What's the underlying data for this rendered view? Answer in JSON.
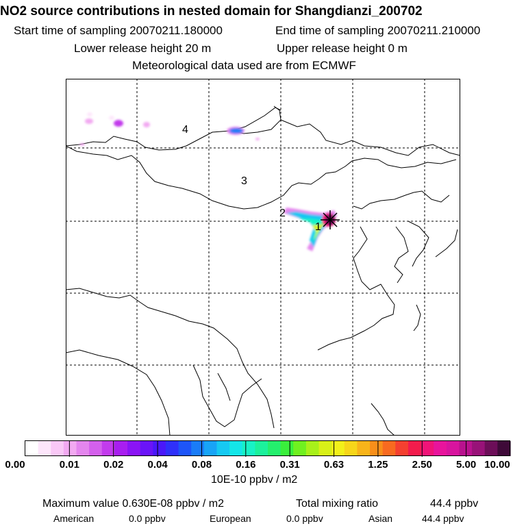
{
  "header": {
    "title": "NO2 source contributions in nested domain for Shangdianzi_200702",
    "start_label": "Start time of sampling 20070211.180000",
    "end_label": "End time of sampling 20070211.210000",
    "lower_label": "Lower release height   20 m",
    "upper_label": "Upper release height    0 m",
    "met_label": "Meteorological data used are from ECMWF"
  },
  "map": {
    "region_labels": [
      "1",
      "2",
      "3",
      "4"
    ]
  },
  "colorbar": {
    "ticks": [
      "0.00",
      "0.01",
      "0.02",
      "0.04",
      "0.08",
      "0.16",
      "0.31",
      "0.63",
      "1.25",
      "2.50",
      "5.00",
      "10.00"
    ],
    "colors": [
      "#ffffff",
      "#fde6fb",
      "#f9c8f6",
      "#f2a9f1",
      "#e486ee",
      "#d460ec",
      "#c23bec",
      "#a81ef0",
      "#8a14f5",
      "#6a14f8",
      "#4a18fa",
      "#2f30fa",
      "#1e55f8",
      "#1a7cf7",
      "#18a4f6",
      "#16c9f2",
      "#14e6e8",
      "#18f2c6",
      "#1cf19c",
      "#24ef6d",
      "#3aef3c",
      "#70f020",
      "#a8f01a",
      "#d8f018",
      "#f2f01a",
      "#f7d61a",
      "#f8b41a",
      "#f88f1a",
      "#f76a20",
      "#f44030",
      "#f21c4c",
      "#f01478",
      "#e8149c",
      "#d8149e",
      "#b8128e",
      "#981278",
      "#6c0e58",
      "#3e0a38"
    ],
    "unit_label": "10E-10 ppbv / m2"
  },
  "stats": {
    "max_label": "Maximum value  0.630E-08 ppbv / m2",
    "total_label": "Total mixing ratio",
    "total_value": "44.4 ppbv",
    "american_label": "American",
    "american_value": "0.0 ppbv",
    "european_label": "European",
    "european_value": "0.0 ppbv",
    "asian_label": "Asian",
    "asian_value": "44.4 ppbv"
  }
}
